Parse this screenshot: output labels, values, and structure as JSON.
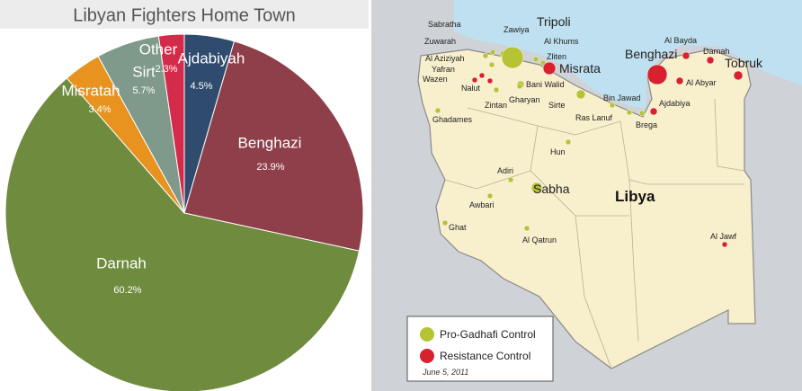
{
  "chart_data": {
    "type": "pie",
    "title": "Libyan Fighters Home Town",
    "categories": [
      "Ajdabiyah",
      "Benghazi",
      "Darnah",
      "Misratah",
      "Sirt",
      "Other"
    ],
    "values": [
      4.5,
      23.9,
      60.2,
      3.4,
      5.7,
      2.3
    ],
    "value_labels": [
      "4.5%",
      "23.9%",
      "60.2%",
      "3.4%",
      "5.7%",
      "2.3%"
    ],
    "colors": [
      "#2f4b6e",
      "#8e3f4a",
      "#6f8b3e",
      "#e8921f",
      "#7f998b",
      "#d52b4b"
    ]
  },
  "map": {
    "country": "Libya",
    "cities": [
      "Sabratha",
      "Zawiya",
      "Tripoli",
      "Zuwarah",
      "Al Khums",
      "Zliten",
      "Al Aziziyah",
      "Misrata",
      "Yafran",
      "Wazen",
      "Nalut",
      "Bani Walid",
      "Gharyan",
      "Zintan",
      "Ghadames",
      "Sirte",
      "Bin Jawad",
      "Ras Lanuf",
      "Brega",
      "Ajdabiya",
      "Benghazi",
      "Al Bayda",
      "Darnah",
      "Tobruk",
      "Al Abyar",
      "Hun",
      "Adiri",
      "Sabha",
      "Awbari",
      "Ghat",
      "Al Qatrun",
      "Al Jawf"
    ],
    "legend": [
      "Pro-Gadhafi Control",
      "Resistance Control"
    ],
    "date": "June 5, 2011"
  }
}
